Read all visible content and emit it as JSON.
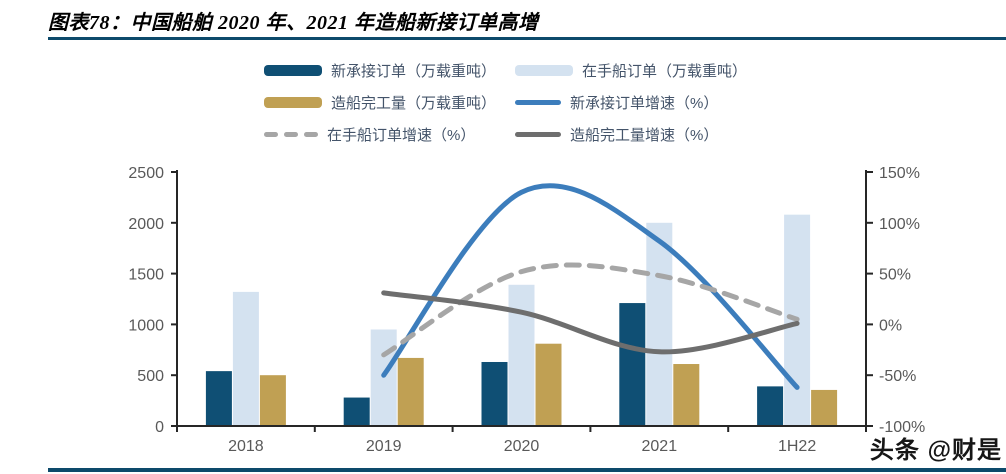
{
  "page": {
    "title": "图表78：中国船舶 2020 年、2021 年造船新接订单高增",
    "watermark": "头条 @财是"
  },
  "colors": {
    "rule_navy": "#0d4a6b",
    "bar_dark_blue": "#0f4f74",
    "bar_light_blue": "#d4e2f0",
    "bar_gold": "#c0a053",
    "line_blue": "#3c7dbc",
    "line_gray_dashed": "#a6a6a6",
    "line_gray_dark": "#6e6e6e",
    "axis_line": "#262626",
    "tick_label": "#595959",
    "legend_text": "#44546a"
  },
  "chart_data": {
    "type": "bar",
    "subtype": "combo bar + smooth lines, dual y-axis",
    "categories": [
      "2018",
      "2019",
      "2020",
      "2021",
      "1H22"
    ],
    "bar_series": [
      {
        "name": "新承接订单（万载重吨）",
        "color": "#0f4f74",
        "values": [
          540,
          280,
          630,
          1210,
          390
        ]
      },
      {
        "name": "在手船订单（万载重吨）",
        "color": "#d4e2f0",
        "values": [
          1320,
          950,
          1390,
          2000,
          2080
        ]
      },
      {
        "name": "造船完工量（万载重吨）",
        "color": "#c0a053",
        "values": [
          500,
          670,
          810,
          610,
          355
        ]
      }
    ],
    "line_series": [
      {
        "name": "新承接订单增速（%）",
        "color": "#3c7dbc",
        "style": "solid",
        "values": [
          null,
          -50,
          130,
          82,
          -62
        ]
      },
      {
        "name": "在手船订单增速（%）",
        "color": "#a6a6a6",
        "style": "dashed",
        "values": [
          null,
          -30,
          52,
          48,
          5
        ]
      },
      {
        "name": "造船完工量增速（%）",
        "color": "#6e6e6e",
        "style": "solid",
        "values": [
          null,
          31,
          12,
          -27,
          1
        ]
      }
    ],
    "left_axis": {
      "min": 0,
      "max": 2500,
      "ticks": [
        "0",
        "500",
        "1000",
        "1500",
        "2000",
        "2500"
      ]
    },
    "right_axis": {
      "min": -100,
      "max": 150,
      "ticks": [
        "-100%",
        "-50%",
        "0%",
        "50%",
        "100%",
        "150%"
      ]
    },
    "grid": "off",
    "legend_position": "top"
  }
}
